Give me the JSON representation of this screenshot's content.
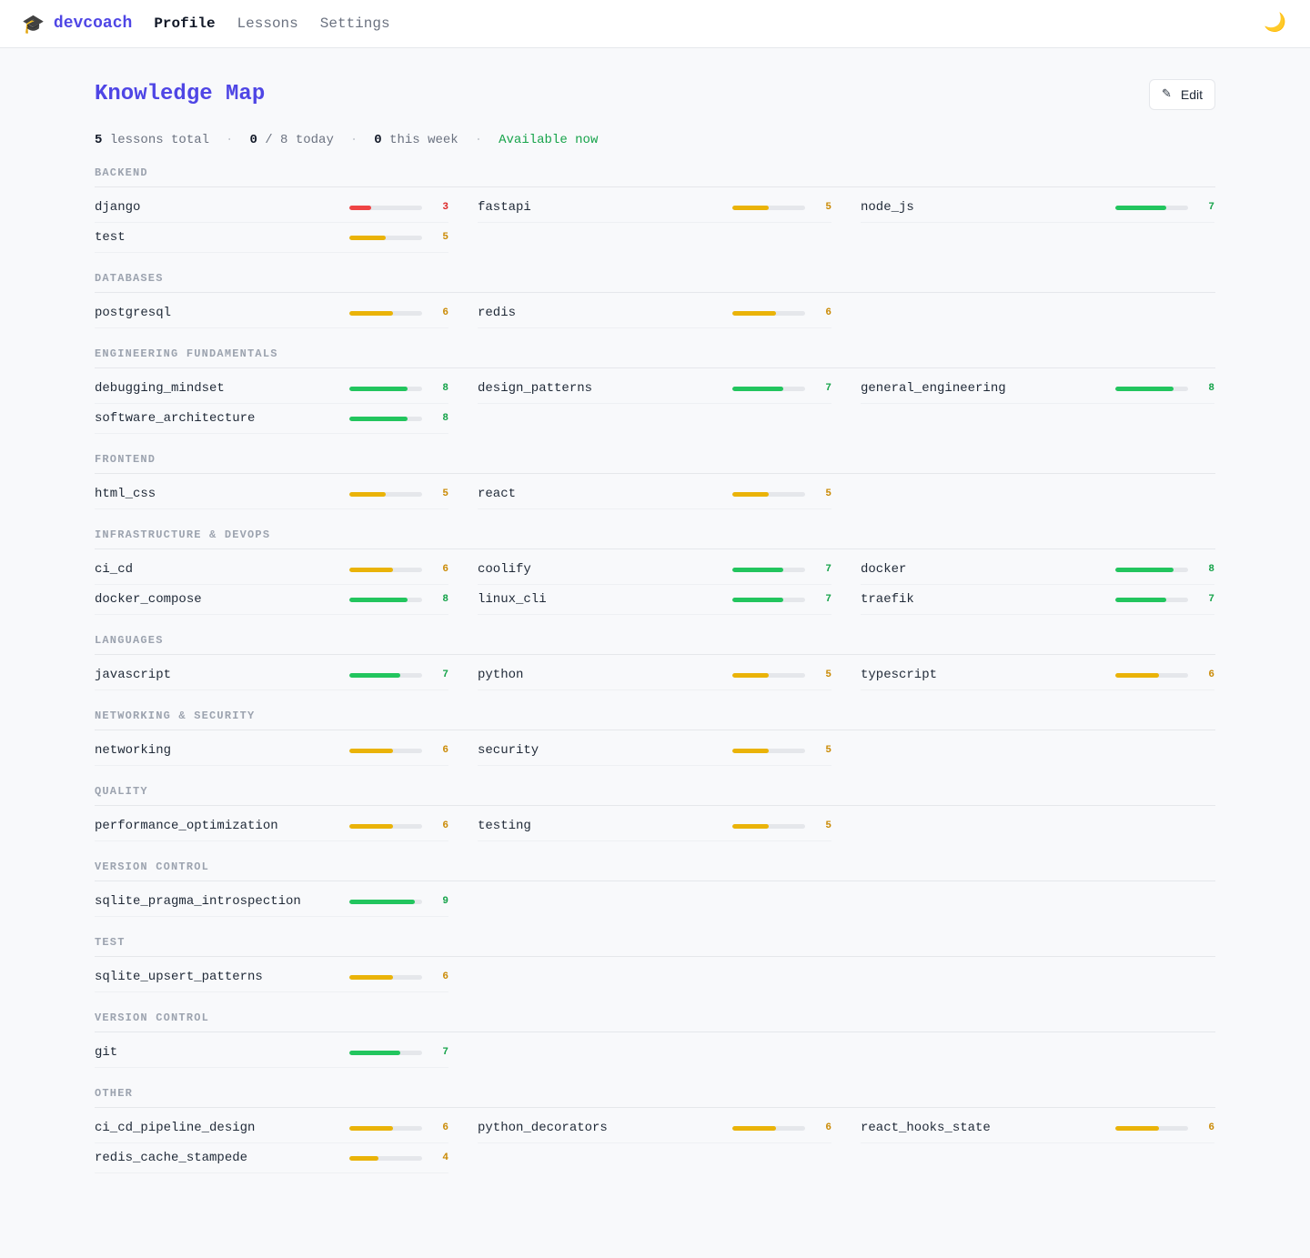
{
  "nav": {
    "brand_icon": "🎓",
    "brand": "devcoach",
    "links": [
      "Profile",
      "Lessons",
      "Settings"
    ],
    "theme_icon": "🌙"
  },
  "page": {
    "title": "Knowledge Map",
    "edit_icon": "✎",
    "edit_label": "Edit"
  },
  "stats": {
    "total_num": "5",
    "total_label": "lessons total",
    "today_num": "0",
    "today_label": "/ 8 today",
    "week_num": "0",
    "week_label": "this week",
    "availability": "Available now"
  },
  "colors": {
    "low": "#ef4444",
    "mid": "#eab308",
    "high": "#22c55e",
    "low_text": "#dc2626",
    "mid_text": "#ca8a04",
    "high_text": "#16a34a"
  },
  "sections": [
    {
      "title": "BACKEND",
      "skills": [
        {
          "name": "django",
          "score": 3
        },
        {
          "name": "fastapi",
          "score": 5
        },
        {
          "name": "node_js",
          "score": 7
        },
        {
          "name": "test",
          "score": 5
        }
      ]
    },
    {
      "title": "DATABASES",
      "skills": [
        {
          "name": "postgresql",
          "score": 6
        },
        {
          "name": "redis",
          "score": 6
        }
      ]
    },
    {
      "title": "ENGINEERING FUNDAMENTALS",
      "skills": [
        {
          "name": "debugging_mindset",
          "score": 8
        },
        {
          "name": "design_patterns",
          "score": 7
        },
        {
          "name": "general_engineering",
          "score": 8
        },
        {
          "name": "software_architecture",
          "score": 8
        }
      ]
    },
    {
      "title": "FRONTEND",
      "skills": [
        {
          "name": "html_css",
          "score": 5
        },
        {
          "name": "react",
          "score": 5
        }
      ]
    },
    {
      "title": "INFRASTRUCTURE & DEVOPS",
      "skills": [
        {
          "name": "ci_cd",
          "score": 6
        },
        {
          "name": "coolify",
          "score": 7
        },
        {
          "name": "docker",
          "score": 8
        },
        {
          "name": "docker_compose",
          "score": 8
        },
        {
          "name": "linux_cli",
          "score": 7
        },
        {
          "name": "traefik",
          "score": 7
        }
      ]
    },
    {
      "title": "LANGUAGES",
      "skills": [
        {
          "name": "javascript",
          "score": 7
        },
        {
          "name": "python",
          "score": 5
        },
        {
          "name": "typescript",
          "score": 6
        }
      ]
    },
    {
      "title": "NETWORKING & SECURITY",
      "skills": [
        {
          "name": "networking",
          "score": 6
        },
        {
          "name": "security",
          "score": 5
        }
      ]
    },
    {
      "title": "QUALITY",
      "skills": [
        {
          "name": "performance_optimization",
          "score": 6
        },
        {
          "name": "testing",
          "score": 5
        }
      ]
    },
    {
      "title": "VERSION CONTROL",
      "skills": [
        {
          "name": "sqlite_pragma_introspection",
          "score": 9
        }
      ]
    },
    {
      "title": "TEST",
      "skills": [
        {
          "name": "sqlite_upsert_patterns",
          "score": 6
        }
      ]
    },
    {
      "title": "VERSION CONTROL",
      "skills": [
        {
          "name": "git",
          "score": 7
        }
      ]
    },
    {
      "title": "OTHER",
      "skills": [
        {
          "name": "ci_cd_pipeline_design",
          "score": 6
        },
        {
          "name": "python_decorators",
          "score": 6
        },
        {
          "name": "react_hooks_state",
          "score": 6
        },
        {
          "name": "redis_cache_stampede",
          "score": 4
        }
      ]
    }
  ]
}
